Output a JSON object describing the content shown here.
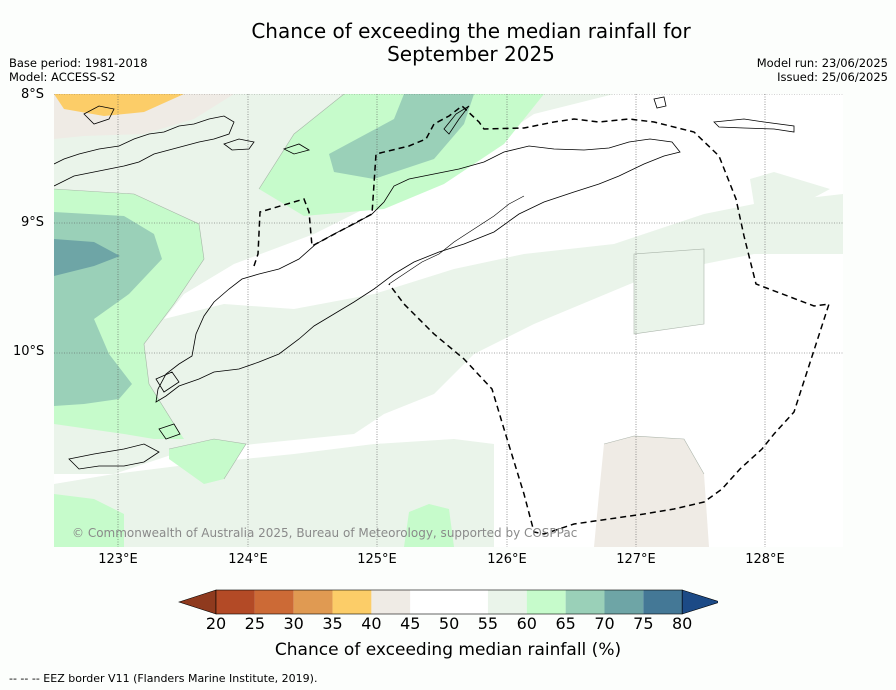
{
  "title_line1": "Chance of exceeding the median rainfall for",
  "title_line2": "September 2025",
  "meta_left": [
    "Base period: 1981-2018",
    "Model: ACCESS-S2"
  ],
  "meta_right": [
    "Model run: 23/06/2025",
    "Issued: 25/06/2025"
  ],
  "lat_labels": [
    "8°S",
    "9°S",
    "10°S"
  ],
  "lon_labels": [
    "123°E",
    "124°E",
    "125°E",
    "126°E",
    "127°E",
    "128°E"
  ],
  "copyright": "© Commonwealth of Australia 2025, Bureau of Meteorology, supported by COSPPac",
  "colorbar": {
    "ticks": [
      "20",
      "25",
      "30",
      "35",
      "40",
      "45",
      "50",
      "55",
      "60",
      "65",
      "70",
      "75",
      "80"
    ],
    "colors": [
      "#8f3a1e",
      "#b34a26",
      "#cc6a36",
      "#e09a52",
      "#fccd68",
      "#efebe5",
      "#ffffff",
      "#ffffff",
      "#eaf4ea",
      "#c6fbcb",
      "#9ad0b8",
      "#6ea5a6",
      "#447896",
      "#1c4a86"
    ],
    "label": "Chance of exceeding median rainfall (%)"
  },
  "footer": "--  --  -- EEZ border V11 (Flanders Marine Institute, 2019).",
  "map_data": {
    "extent_lon": [
      122.5,
      128.6
    ],
    "extent_lat": [
      -8.0,
      -11.5
    ],
    "gridlines_lon": [
      123,
      124,
      125,
      126,
      127,
      128
    ],
    "gridlines_lat": [
      -8,
      -9,
      -10
    ]
  }
}
